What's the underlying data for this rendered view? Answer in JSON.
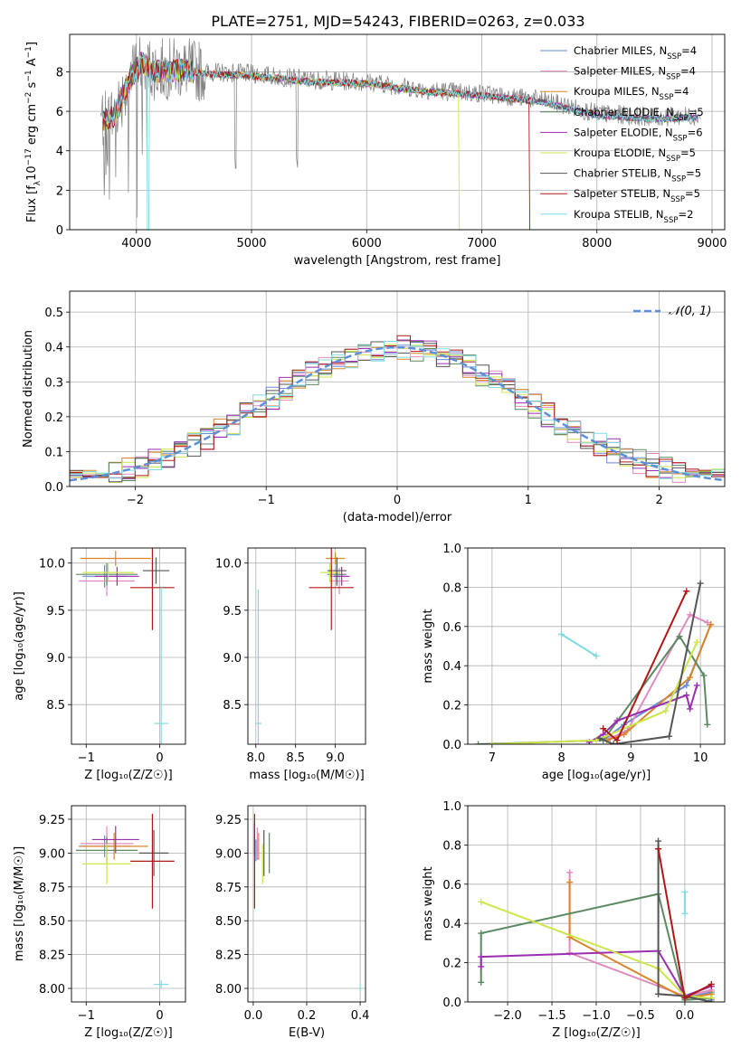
{
  "title": "PLATE=2751, MJD=54243, FIBERID=0263, z=0.033",
  "colors": {
    "chab_miles": "#6a8bd6",
    "salp_miles": "#e08ac0",
    "krou_miles": "#d9862a",
    "chab_elodie": "#5b8a62",
    "salp_elodie": "#9a2fb0",
    "krou_elodie": "#cde64a",
    "chab_stelib": "#555555",
    "salp_stelib": "#b01818",
    "krou_stelib": "#7edbe0",
    "obs": "#808080",
    "gauss": "#5b8fd9"
  },
  "legend": [
    {
      "key": "chab_miles",
      "text": "Chabrier MILES, N",
      "sub": "SSP",
      "suffix": "=4"
    },
    {
      "key": "salp_miles",
      "text": "Salpeter MILES, N",
      "sub": "SSP",
      "suffix": "=4"
    },
    {
      "key": "krou_miles",
      "text": "Kroupa MILES, N",
      "sub": "SSP",
      "suffix": "=4"
    },
    {
      "key": "chab_elodie",
      "text": "Chabrier ELODIE, N",
      "sub": "SSP",
      "suffix": "=5"
    },
    {
      "key": "salp_elodie",
      "text": "Salpeter ELODIE, N",
      "sub": "SSP",
      "suffix": "=6"
    },
    {
      "key": "krou_elodie",
      "text": "Kroupa ELODIE, N",
      "sub": "SSP",
      "suffix": "=5"
    },
    {
      "key": "chab_stelib",
      "text": "Chabrier STELIB, N",
      "sub": "SSP",
      "suffix": "=5"
    },
    {
      "key": "salp_stelib",
      "text": "Salpeter STELIB, N",
      "sub": "SSP",
      "suffix": "=5"
    },
    {
      "key": "krou_stelib",
      "text": "Kroupa STELIB, N",
      "sub": "SSP",
      "suffix": "=2"
    }
  ],
  "chart_data": [
    {
      "type": "line",
      "id": "spectrum",
      "xlabel": "wavelength [Angstrom, rest frame]",
      "ylabel": "Flux [f_λ 10^-17 erg cm^-2 s^-1 A^-1]",
      "xlim": [
        3420,
        9110
      ],
      "ylim": [
        0,
        9.9
      ],
      "xticks": [
        4000,
        5000,
        6000,
        7000,
        8000,
        9000
      ],
      "yticks": [
        0,
        2,
        4,
        6,
        8
      ],
      "continuum": {
        "x": [
          3690,
          3800,
          3950,
          4050,
          4150,
          4400,
          4600,
          5000,
          5500,
          6000,
          6500,
          7000,
          7500,
          8000,
          8500,
          8900
        ],
        "y": [
          5.6,
          5.8,
          7.8,
          8.6,
          8.1,
          8.2,
          8.0,
          7.9,
          7.6,
          7.5,
          7.1,
          6.9,
          6.6,
          5.9,
          5.7,
          5.8
        ]
      },
      "dropouts": {
        "krou_elodie": 6800,
        "salp_stelib": 7410
      },
      "grid": true
    },
    {
      "type": "histogram",
      "id": "residuals",
      "xlabel": "(data-model)/error",
      "ylabel": "Normed distribution",
      "xlim": [
        -2.5,
        2.5
      ],
      "ylim": [
        0,
        0.56
      ],
      "xticks": [
        -2,
        -1,
        0,
        1,
        2
      ],
      "yticks": [
        0.0,
        0.1,
        0.2,
        0.3,
        0.4,
        0.5
      ],
      "bin_width": 0.1,
      "gauss_label": "𝒩(0, 1)",
      "grid": true
    },
    {
      "type": "errorbar",
      "id": "age_vs_Z",
      "xlabel": "Z [log₁₀(Z/Z☉)]",
      "ylabel": "age  [log₁₀(age/yr)]",
      "xlim": [
        -1.2,
        0.35
      ],
      "ylim": [
        8.08,
        10.16
      ],
      "xticks": [
        -1,
        0
      ],
      "yticks": [
        8.5,
        9.0,
        9.5,
        10.0
      ],
      "points": [
        {
          "key": "chab_miles",
          "x": -0.75,
          "xerr": 0.3,
          "y": 9.86,
          "yerr": 0.12
        },
        {
          "key": "salp_miles",
          "x": -0.72,
          "xerr": 0.38,
          "y": 9.81,
          "yerr": 0.16
        },
        {
          "key": "krou_miles",
          "x": -0.6,
          "xerr": 0.48,
          "y": 10.05,
          "yerr": 0.08
        },
        {
          "key": "chab_elodie",
          "x": -0.72,
          "xerr": 0.42,
          "y": 9.88,
          "yerr": 0.12
        },
        {
          "key": "salp_elodie",
          "x": -0.58,
          "xerr": 0.3,
          "y": 9.86,
          "yerr": 0.1
        },
        {
          "key": "krou_elodie",
          "x": -0.7,
          "xerr": 0.35,
          "y": 9.9,
          "yerr": 0.1
        },
        {
          "key": "chab_stelib",
          "x": -0.05,
          "xerr": 0.18,
          "y": 9.92,
          "yerr": 0.14
        },
        {
          "key": "salp_stelib",
          "x": -0.1,
          "xerr": 0.3,
          "y": 9.74,
          "yerr": 0.45
        },
        {
          "key": "krou_stelib",
          "x": 0.02,
          "xerr": 0.1,
          "y": 8.3,
          "yerr": 1.45
        }
      ],
      "grid": true
    },
    {
      "type": "errorbar",
      "id": "age_vs_mass",
      "xlabel": "mass [log₁₀(M/M☉)]",
      "ylabel": "",
      "xlim": [
        7.9,
        9.38
      ],
      "ylim": [
        8.08,
        10.16
      ],
      "xticks": [
        8.0,
        8.5,
        9.0
      ],
      "yticks": [
        8.5,
        9.0,
        9.5,
        10.0
      ],
      "points": [
        {
          "key": "chab_miles",
          "x": 9.02,
          "xerr": 0.1,
          "y": 9.86,
          "yerr": 0.1
        },
        {
          "key": "salp_miles",
          "x": 9.05,
          "xerr": 0.12,
          "y": 9.81,
          "yerr": 0.14
        },
        {
          "key": "krou_miles",
          "x": 9.0,
          "xerr": 0.12,
          "y": 10.05,
          "yerr": 0.06
        },
        {
          "key": "chab_elodie",
          "x": 9.02,
          "xerr": 0.12,
          "y": 9.88,
          "yerr": 0.12
        },
        {
          "key": "salp_elodie",
          "x": 9.08,
          "xerr": 0.1,
          "y": 9.86,
          "yerr": 0.1
        },
        {
          "key": "krou_elodie",
          "x": 8.93,
          "xerr": 0.12,
          "y": 9.9,
          "yerr": 0.1
        },
        {
          "key": "chab_stelib",
          "x": 9.02,
          "xerr": 0.12,
          "y": 9.92,
          "yerr": 0.14
        },
        {
          "key": "salp_stelib",
          "x": 8.95,
          "xerr": 0.28,
          "y": 9.74,
          "yerr": 0.45
        },
        {
          "key": "krou_stelib",
          "x": 8.03,
          "xerr": 0.04,
          "y": 8.3,
          "yerr": 1.42
        }
      ],
      "grid": true
    },
    {
      "type": "line",
      "id": "weight_vs_age",
      "xlabel": "age  [log₁₀(age/yr)]",
      "ylabel": "mass weight",
      "xlim": [
        6.65,
        10.35
      ],
      "ylim": [
        0,
        1.0
      ],
      "xticks": [
        7,
        8,
        9,
        10
      ],
      "yticks": [
        0.0,
        0.2,
        0.4,
        0.6,
        0.8,
        1.0
      ],
      "series": [
        {
          "key": "chab_miles",
          "x": [
            8.6,
            8.9,
            9.8,
            10.15
          ],
          "y": [
            0.02,
            0.1,
            0.3,
            0.61
          ]
        },
        {
          "key": "salp_miles",
          "x": [
            8.7,
            8.95,
            9.85,
            10.1
          ],
          "y": [
            0.03,
            0.07,
            0.66,
            0.62
          ]
        },
        {
          "key": "krou_miles",
          "x": [
            8.65,
            8.9,
            9.85,
            10.15
          ],
          "y": [
            0.02,
            0.05,
            0.34,
            0.61
          ]
        },
        {
          "key": "chab_elodie",
          "x": [
            6.8,
            8.6,
            9.7,
            10.05,
            10.1
          ],
          "y": [
            0.0,
            0.02,
            0.55,
            0.35,
            0.1
          ]
        },
        {
          "key": "salp_elodie",
          "x": [
            8.4,
            8.6,
            8.8,
            9.8,
            9.85,
            9.95
          ],
          "y": [
            0.01,
            0.05,
            0.12,
            0.25,
            0.18,
            0.3
          ]
        },
        {
          "key": "krou_elodie",
          "x": [
            7.0,
            8.5,
            9.5,
            9.95
          ],
          "y": [
            0.0,
            0.02,
            0.17,
            0.52
          ]
        },
        {
          "key": "chab_stelib",
          "x": [
            8.55,
            8.75,
            9.55,
            10.0
          ],
          "y": [
            0.03,
            0.0,
            0.04,
            0.82
          ]
        },
        {
          "key": "salp_stelib",
          "x": [
            8.6,
            8.8,
            9.8
          ],
          "y": [
            0.08,
            0.02,
            0.78
          ]
        },
        {
          "key": "krou_stelib",
          "x": [
            8.0,
            8.5
          ],
          "y": [
            0.56,
            0.45
          ]
        }
      ],
      "grid": true
    },
    {
      "type": "errorbar",
      "id": "mass_vs_Z",
      "xlabel": "Z [log₁₀(Z/Z☉)]",
      "ylabel": "mass [log₁₀(M/M☉)]",
      "xlim": [
        -1.2,
        0.35
      ],
      "ylim": [
        7.9,
        9.35
      ],
      "xticks": [
        -1,
        0
      ],
      "yticks": [
        8.0,
        8.25,
        8.5,
        8.75,
        9.0,
        9.25
      ],
      "points": [
        {
          "key": "chab_miles",
          "x": -0.75,
          "xerr": 0.35,
          "y": 9.05,
          "yerr": 0.08
        },
        {
          "key": "salp_miles",
          "x": -0.72,
          "xerr": 0.36,
          "y": 9.07,
          "yerr": 0.13
        },
        {
          "key": "krou_miles",
          "x": -0.62,
          "xerr": 0.46,
          "y": 9.05,
          "yerr": 0.1
        },
        {
          "key": "chab_elodie",
          "x": -0.72,
          "xerr": 0.42,
          "y": 9.02,
          "yerr": 0.1
        },
        {
          "key": "salp_elodie",
          "x": -0.6,
          "xerr": 0.32,
          "y": 9.1,
          "yerr": 0.1
        },
        {
          "key": "krou_elodie",
          "x": -0.72,
          "xerr": 0.33,
          "y": 8.92,
          "yerr": 0.15
        },
        {
          "key": "chab_stelib",
          "x": -0.08,
          "xerr": 0.2,
          "y": 9.0,
          "yerr": 0.17
        },
        {
          "key": "salp_stelib",
          "x": -0.1,
          "xerr": 0.3,
          "y": 8.94,
          "yerr": 0.35
        },
        {
          "key": "krou_stelib",
          "x": 0.02,
          "xerr": 0.1,
          "y": 8.03,
          "yerr": 0.03
        }
      ],
      "grid": true
    },
    {
      "type": "errorbar",
      "id": "mass_vs_EBV",
      "xlabel": "E(B-V)",
      "ylabel": "",
      "xlim": [
        -0.02,
        0.42
      ],
      "ylim": [
        7.9,
        9.35
      ],
      "xticks": [
        0.0,
        0.2,
        0.4
      ],
      "yticks": [
        8.0,
        8.25,
        8.5,
        8.75,
        9.0,
        9.25
      ],
      "points": [
        {
          "key": "chab_miles",
          "x": 0.01,
          "xerr": 0.0,
          "y": 9.02,
          "yerr": 0.08
        },
        {
          "key": "salp_miles",
          "x": 0.015,
          "xerr": 0.0,
          "y": 9.07,
          "yerr": 0.12
        },
        {
          "key": "krou_miles",
          "x": 0.02,
          "xerr": 0.0,
          "y": 9.05,
          "yerr": 0.1
        },
        {
          "key": "chab_elodie",
          "x": 0.06,
          "xerr": 0.0,
          "y": 9.0,
          "yerr": 0.15
        },
        {
          "key": "salp_elodie",
          "x": 0.005,
          "xerr": 0.0,
          "y": 9.1,
          "yerr": 0.12
        },
        {
          "key": "krou_elodie",
          "x": 0.035,
          "xerr": 0.0,
          "y": 8.92,
          "yerr": 0.15
        },
        {
          "key": "chab_stelib",
          "x": 0.04,
          "xerr": 0.0,
          "y": 9.0,
          "yerr": 0.17
        },
        {
          "key": "salp_stelib",
          "x": 0.005,
          "xerr": 0.0,
          "y": 8.94,
          "yerr": 0.35
        },
        {
          "key": "krou_stelib",
          "x": 0.4,
          "xerr": 0.0,
          "y": 8.0,
          "yerr": 0.03
        }
      ],
      "grid": true
    },
    {
      "type": "line",
      "id": "weight_vs_Z",
      "xlabel": "Z [log₁₀(Z/Z☉)]",
      "ylabel": "mass weight",
      "xlim": [
        -2.45,
        0.45
      ],
      "ylim": [
        0,
        1.0
      ],
      "xticks": [
        -2.0,
        -1.5,
        -1.0,
        -0.5,
        0.0
      ],
      "yticks": [
        0.0,
        0.2,
        0.4,
        0.6,
        0.8,
        1.0
      ],
      "series": [
        {
          "key": "chab_miles",
          "x": [
            0.0,
            0.3,
            0.3
          ],
          "y": [
            0.02,
            0.05,
            0.01
          ]
        },
        {
          "key": "salp_miles",
          "x": [
            -1.3,
            -1.3,
            0.0,
            0.3
          ],
          "y": [
            0.66,
            0.25,
            0.03,
            0.06
          ]
        },
        {
          "key": "krou_miles",
          "x": [
            -1.3,
            -1.3,
            0.0,
            0.3
          ],
          "y": [
            0.61,
            0.33,
            0.02,
            0.04
          ]
        },
        {
          "key": "chab_elodie",
          "x": [
            -2.3,
            -2.3,
            -0.3,
            0.0,
            0.3
          ],
          "y": [
            0.1,
            0.35,
            0.55,
            0.01,
            0.02
          ]
        },
        {
          "key": "salp_elodie",
          "x": [
            -2.3,
            -2.3,
            -0.3,
            0.0,
            0.3
          ],
          "y": [
            0.18,
            0.23,
            0.26,
            0.03,
            0.08
          ]
        },
        {
          "key": "krou_elodie",
          "x": [
            -2.3,
            -0.3,
            0.0,
            0.3
          ],
          "y": [
            0.51,
            0.17,
            0.03,
            0.02
          ]
        },
        {
          "key": "chab_stelib",
          "x": [
            -0.3,
            -0.3,
            0.0,
            0.3
          ],
          "y": [
            0.82,
            0.04,
            0.03,
            0.0
          ]
        },
        {
          "key": "salp_stelib",
          "x": [
            -0.3,
            0.0,
            0.3
          ],
          "y": [
            0.78,
            0.02,
            0.09
          ]
        },
        {
          "key": "krou_stelib",
          "x": [
            0.0,
            0.0
          ],
          "y": [
            0.56,
            0.45
          ]
        }
      ],
      "grid": true
    }
  ]
}
